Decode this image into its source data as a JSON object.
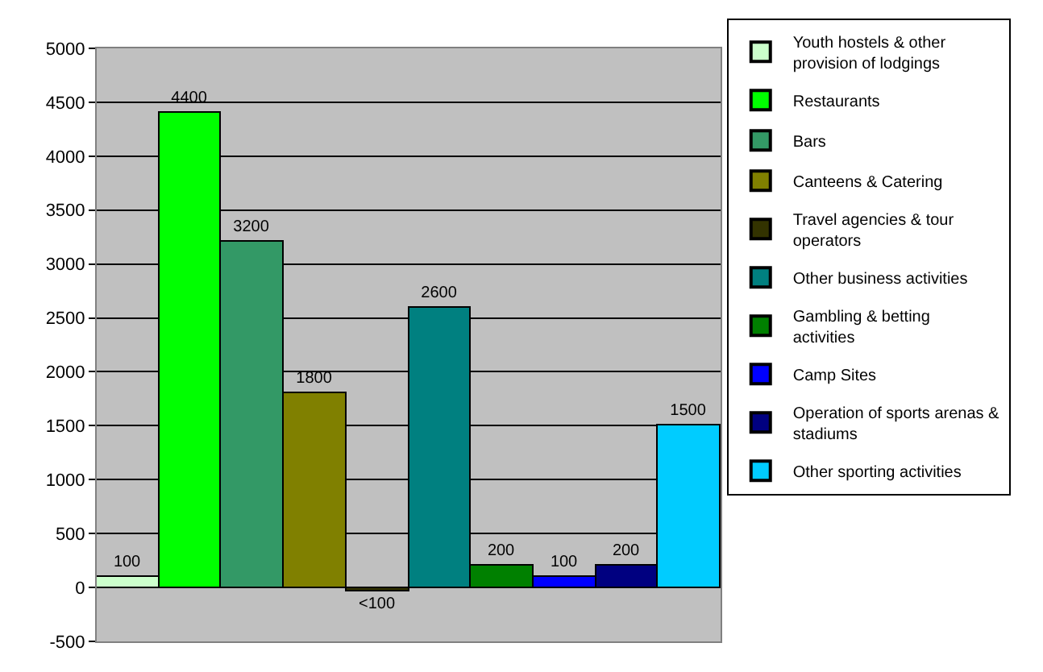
{
  "chart_data": {
    "type": "bar",
    "categories": [
      null
    ],
    "series": [
      {
        "name": "Youth hostels & other provision of lodgings",
        "color": "#ccffcc",
        "values": [
          100
        ],
        "value_labels": [
          "100"
        ]
      },
      {
        "name": "Restaurants",
        "color": "#00ff00",
        "values": [
          4400
        ],
        "value_labels": [
          "4400"
        ]
      },
      {
        "name": "Bars",
        "color": "#339966",
        "values": [
          3200
        ],
        "value_labels": [
          "3200"
        ]
      },
      {
        "name": "Canteens & Catering",
        "color": "#808000",
        "values": [
          1800
        ],
        "value_labels": [
          "1800"
        ]
      },
      {
        "name": "Travel agencies & tour operators",
        "color": "#333300",
        "values": [
          -30
        ],
        "value_labels": [
          "<100"
        ]
      },
      {
        "name": "Other business activities",
        "color": "#008080",
        "values": [
          2600
        ],
        "value_labels": [
          "2600"
        ]
      },
      {
        "name": "Gambling & betting activities",
        "color": "#008000",
        "values": [
          200
        ],
        "value_labels": [
          "200"
        ]
      },
      {
        "name": "Camp Sites",
        "color": "#0000ff",
        "values": [
          100
        ],
        "value_labels": [
          "100"
        ]
      },
      {
        "name": "Operation of sports arenas & stadiums",
        "color": "#000080",
        "values": [
          200
        ],
        "value_labels": [
          "200"
        ]
      },
      {
        "name": "Other sporting activities",
        "color": "#00ccff",
        "values": [
          1500
        ],
        "value_labels": [
          "1500"
        ]
      }
    ],
    "ylim": [
      -500,
      5000
    ],
    "yticks": [
      -500,
      0,
      500,
      1000,
      1500,
      2000,
      2500,
      3000,
      3500,
      4000,
      4500,
      5000
    ],
    "grid": "y",
    "legend": "right"
  }
}
